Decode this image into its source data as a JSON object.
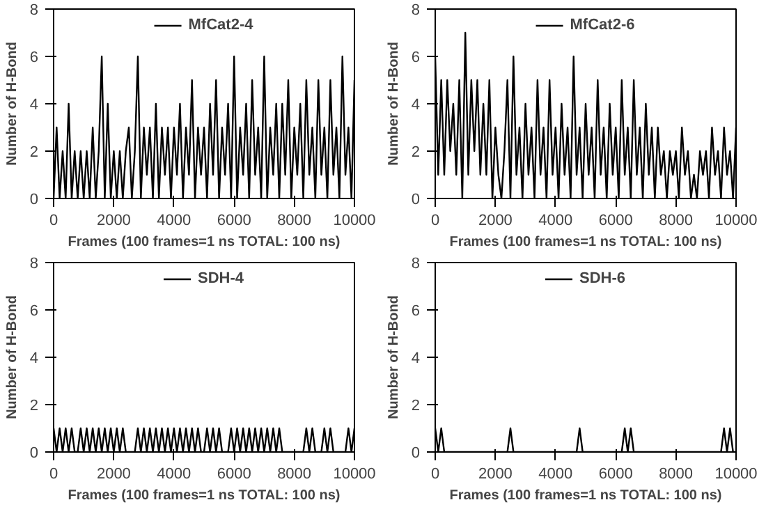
{
  "chart_data": [
    {
      "type": "line",
      "xlabel": "Frames (100 frames=1 ns TOTAL: 100 ns)",
      "ylabel": "Number of H-Bond",
      "xlim": [
        0,
        10000
      ],
      "ylim": [
        0,
        8
      ],
      "xticks": [
        0,
        2000,
        4000,
        6000,
        8000,
        10000
      ],
      "yticks": [
        0,
        2,
        4,
        6,
        8
      ],
      "grid": false,
      "legend": "top",
      "x": [
        0,
        100,
        200,
        300,
        400,
        500,
        600,
        700,
        800,
        900,
        1000,
        1100,
        1200,
        1300,
        1400,
        1500,
        1600,
        1700,
        1800,
        1900,
        2000,
        2100,
        2200,
        2300,
        2400,
        2500,
        2600,
        2700,
        2800,
        2900,
        3000,
        3100,
        3200,
        3300,
        3400,
        3500,
        3600,
        3700,
        3800,
        3900,
        4000,
        4100,
        4200,
        4300,
        4400,
        4500,
        4600,
        4700,
        4800,
        4900,
        5000,
        5100,
        5200,
        5300,
        5400,
        5500,
        5600,
        5700,
        5800,
        5900,
        6000,
        6100,
        6200,
        6300,
        6400,
        6500,
        6600,
        6700,
        6800,
        6900,
        7000,
        7100,
        7200,
        7300,
        7400,
        7500,
        7600,
        7700,
        7800,
        7900,
        8000,
        8100,
        8200,
        8300,
        8400,
        8500,
        8600,
        8700,
        8800,
        8900,
        9000,
        9100,
        9200,
        9300,
        9400,
        9500,
        9600,
        9700,
        9800,
        9900,
        10000
      ],
      "series": [
        {
          "name": "MfCat2-4",
          "color": "#000000",
          "values": [
            0,
            3,
            0,
            2,
            0,
            4,
            0,
            2,
            0,
            2,
            0,
            2,
            0,
            3,
            0,
            2,
            6,
            0,
            4,
            0,
            2,
            0,
            2,
            0,
            2,
            3,
            0,
            2,
            6,
            0,
            3,
            1,
            3,
            0,
            4,
            0,
            3,
            1,
            3,
            0,
            3,
            1,
            4,
            0,
            3,
            1,
            5,
            0,
            3,
            1,
            3,
            0,
            4,
            1,
            5,
            0,
            3,
            1,
            4,
            0,
            6,
            0,
            3,
            1,
            4,
            0,
            5,
            1,
            3,
            0,
            6,
            0,
            3,
            1,
            4,
            0,
            4,
            1,
            5,
            0,
            3,
            1,
            4,
            0,
            5,
            1,
            3,
            0,
            5,
            1,
            3,
            0,
            5,
            1,
            3,
            0,
            6,
            1,
            3,
            0,
            5
          ]
        }
      ]
    },
    {
      "type": "line",
      "xlabel": "Frames (100 frames=1 ns TOTAL: 100 ns)",
      "ylabel": "Number of H-Bond",
      "xlim": [
        0,
        10000
      ],
      "ylim": [
        0,
        8
      ],
      "xticks": [
        0,
        2000,
        4000,
        6000,
        8000,
        10000
      ],
      "yticks": [
        0,
        2,
        4,
        6,
        8
      ],
      "grid": false,
      "legend": "top",
      "x": [
        0,
        100,
        200,
        300,
        400,
        500,
        600,
        700,
        800,
        900,
        1000,
        1100,
        1200,
        1300,
        1400,
        1500,
        1600,
        1700,
        1800,
        1900,
        2000,
        2100,
        2200,
        2300,
        2400,
        2500,
        2600,
        2700,
        2800,
        2900,
        3000,
        3100,
        3200,
        3300,
        3400,
        3500,
        3600,
        3700,
        3800,
        3900,
        4000,
        4100,
        4200,
        4300,
        4400,
        4500,
        4600,
        4700,
        4800,
        4900,
        5000,
        5100,
        5200,
        5300,
        5400,
        5500,
        5600,
        5700,
        5800,
        5900,
        6000,
        6100,
        6200,
        6300,
        6400,
        6500,
        6600,
        6700,
        6800,
        6900,
        7000,
        7100,
        7200,
        7300,
        7400,
        7500,
        7600,
        7700,
        7800,
        7900,
        8000,
        8100,
        8200,
        8300,
        8400,
        8500,
        8600,
        8700,
        8800,
        8900,
        9000,
        9100,
        9200,
        9300,
        9400,
        9500,
        9600,
        9700,
        9800,
        9900,
        10000
      ],
      "series": [
        {
          "name": "MfCat2-6",
          "color": "#000000",
          "values": [
            6,
            1,
            5,
            1,
            5,
            2,
            4,
            1,
            5,
            0,
            7,
            1,
            5,
            2,
            5,
            1,
            4,
            1,
            5,
            0,
            3,
            1,
            0,
            2,
            5,
            0,
            6,
            1,
            3,
            0,
            4,
            1,
            3,
            0,
            5,
            1,
            3,
            0,
            5,
            1,
            3,
            0,
            4,
            1,
            3,
            0,
            6,
            1,
            3,
            0,
            4,
            1,
            3,
            0,
            5,
            1,
            3,
            0,
            4,
            1,
            3,
            0,
            5,
            1,
            3,
            0,
            5,
            1,
            3,
            0,
            4,
            1,
            3,
            0,
            3,
            1,
            2,
            0,
            2,
            1,
            2,
            0,
            3,
            1,
            2,
            0,
            1,
            0,
            2,
            1,
            2,
            0,
            3,
            1,
            2,
            0,
            3,
            1,
            2,
            0,
            3
          ]
        }
      ]
    },
    {
      "type": "line",
      "xlabel": "Frames (100 frames=1 ns TOTAL: 100 ns)",
      "ylabel": "Number of H-Bond",
      "xlim": [
        0,
        10000
      ],
      "ylim": [
        0,
        8
      ],
      "xticks": [
        0,
        2000,
        4000,
        6000,
        8000,
        10000
      ],
      "yticks": [
        0,
        2,
        4,
        6,
        8
      ],
      "grid": false,
      "legend": "top",
      "x": [
        0,
        100,
        200,
        300,
        400,
        500,
        600,
        700,
        800,
        900,
        1000,
        1100,
        1200,
        1300,
        1400,
        1500,
        1600,
        1700,
        1800,
        1900,
        2000,
        2100,
        2200,
        2300,
        2400,
        2500,
        2600,
        2700,
        2800,
        2900,
        3000,
        3100,
        3200,
        3300,
        3400,
        3500,
        3600,
        3700,
        3800,
        3900,
        4000,
        4100,
        4200,
        4300,
        4400,
        4500,
        4600,
        4700,
        4800,
        4900,
        5000,
        5100,
        5200,
        5300,
        5400,
        5500,
        5600,
        5700,
        5800,
        5900,
        6000,
        6100,
        6200,
        6300,
        6400,
        6500,
        6600,
        6700,
        6800,
        6900,
        7000,
        7100,
        7200,
        7300,
        7400,
        7500,
        7600,
        7700,
        7800,
        7900,
        8000,
        8100,
        8200,
        8300,
        8400,
        8500,
        8600,
        8700,
        8800,
        8900,
        9000,
        9100,
        9200,
        9300,
        9400,
        9500,
        9600,
        9700,
        9800,
        9900,
        10000
      ],
      "series": [
        {
          "name": "SDH-4",
          "color": "#000000",
          "values": [
            1,
            0,
            1,
            0,
            1,
            0,
            1,
            0,
            0,
            1,
            0,
            1,
            0,
            1,
            0,
            1,
            0,
            1,
            0,
            1,
            0,
            1,
            0,
            1,
            0,
            0,
            0,
            0,
            1,
            0,
            1,
            0,
            1,
            0,
            1,
            0,
            1,
            0,
            1,
            0,
            1,
            0,
            1,
            0,
            1,
            0,
            1,
            0,
            1,
            0,
            0,
            1,
            0,
            1,
            0,
            1,
            0,
            0,
            0,
            1,
            0,
            1,
            0,
            1,
            0,
            1,
            0,
            1,
            0,
            1,
            0,
            1,
            0,
            1,
            0,
            1,
            0,
            0,
            0,
            0,
            0,
            0,
            0,
            0,
            1,
            0,
            1,
            0,
            0,
            0,
            1,
            0,
            1,
            0,
            0,
            0,
            0,
            0,
            1,
            0,
            1
          ]
        }
      ]
    },
    {
      "type": "line",
      "xlabel": "Frames (100 frames=1 ns TOTAL: 100 ns)",
      "ylabel": "Number of H-Bond",
      "xlim": [
        0,
        10000
      ],
      "ylim": [
        0,
        8
      ],
      "xticks": [
        0,
        2000,
        4000,
        6000,
        8000,
        10000
      ],
      "yticks": [
        0,
        2,
        4,
        6,
        8
      ],
      "grid": false,
      "legend": "top",
      "x": [
        0,
        100,
        200,
        300,
        400,
        500,
        600,
        700,
        800,
        900,
        1000,
        1100,
        1200,
        1300,
        1400,
        1500,
        1600,
        1700,
        1800,
        1900,
        2000,
        2100,
        2200,
        2300,
        2400,
        2500,
        2600,
        2700,
        2800,
        2900,
        3000,
        3100,
        3200,
        3300,
        3400,
        3500,
        3600,
        3700,
        3800,
        3900,
        4000,
        4100,
        4200,
        4300,
        4400,
        4500,
        4600,
        4700,
        4800,
        4900,
        5000,
        5100,
        5200,
        5300,
        5400,
        5500,
        5600,
        5700,
        5800,
        5900,
        6000,
        6100,
        6200,
        6300,
        6400,
        6500,
        6600,
        6700,
        6800,
        6900,
        7000,
        7100,
        7200,
        7300,
        7400,
        7500,
        7600,
        7700,
        7800,
        7900,
        8000,
        8100,
        8200,
        8300,
        8400,
        8500,
        8600,
        8700,
        8800,
        8900,
        9000,
        9100,
        9200,
        9300,
        9400,
        9500,
        9600,
        9700,
        9800,
        9900,
        10000
      ],
      "series": [
        {
          "name": "SDH-6",
          "color": "#000000",
          "values": [
            1,
            0,
            1,
            0,
            0,
            0,
            0,
            0,
            0,
            0,
            0,
            0,
            0,
            0,
            0,
            0,
            0,
            0,
            0,
            0,
            0,
            0,
            0,
            0,
            0,
            1,
            0,
            0,
            0,
            0,
            0,
            0,
            0,
            0,
            0,
            0,
            0,
            0,
            0,
            0,
            0,
            0,
            0,
            0,
            0,
            0,
            0,
            0,
            1,
            0,
            0,
            0,
            0,
            0,
            0,
            0,
            0,
            0,
            0,
            0,
            0,
            0,
            0,
            1,
            0,
            1,
            0,
            0,
            0,
            0,
            0,
            0,
            0,
            0,
            0,
            0,
            0,
            0,
            0,
            0,
            0,
            0,
            0,
            0,
            0,
            0,
            0,
            0,
            0,
            0,
            0,
            0,
            0,
            0,
            0,
            0,
            1,
            0,
            1,
            0,
            0
          ]
        }
      ]
    }
  ]
}
